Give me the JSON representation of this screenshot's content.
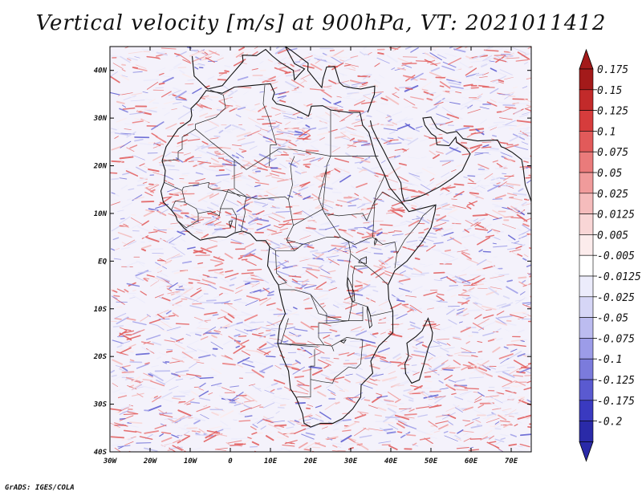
{
  "title": "Vertical velocity [m/s] at 900hPa, VT: 2021011412",
  "credit": "GrADS: IGES/COLA",
  "map": {
    "region": "Africa",
    "lon_range": [
      -30,
      75
    ],
    "lat_range": [
      -40,
      45
    ],
    "lat_ticks": [
      {
        "lat": 40,
        "label": "40N"
      },
      {
        "lat": 30,
        "label": "30N"
      },
      {
        "lat": 20,
        "label": "20N"
      },
      {
        "lat": 10,
        "label": "10N"
      },
      {
        "lat": 0,
        "label": "EQ"
      },
      {
        "lat": -10,
        "label": "10S"
      },
      {
        "lat": -20,
        "label": "20S"
      },
      {
        "lat": -30,
        "label": "30S"
      },
      {
        "lat": -40,
        "label": "40S"
      }
    ],
    "lon_ticks": [
      {
        "lon": -30,
        "label": "30W"
      },
      {
        "lon": -20,
        "label": "20W"
      },
      {
        "lon": -10,
        "label": "10W"
      },
      {
        "lon": 0,
        "label": "0"
      },
      {
        "lon": 10,
        "label": "10E"
      },
      {
        "lon": 20,
        "label": "20E"
      },
      {
        "lon": 30,
        "label": "30E"
      },
      {
        "lon": 40,
        "label": "40E"
      },
      {
        "lon": 50,
        "label": "50E"
      },
      {
        "lon": 60,
        "label": "60E"
      },
      {
        "lon": 70,
        "label": "70E"
      }
    ]
  },
  "colorbar": {
    "levels": [
      {
        "label": "0.175",
        "color": "#a31a1a"
      },
      {
        "label": "0.15",
        "color": "#c22a2a"
      },
      {
        "label": "0.125",
        "color": "#d63c3c"
      },
      {
        "label": "0.1",
        "color": "#e25a5a"
      },
      {
        "label": "0.075",
        "color": "#ea7b7b"
      },
      {
        "label": "0.05",
        "color": "#f09b9b"
      },
      {
        "label": "0.025",
        "color": "#f5bcbc"
      },
      {
        "label": "0.0125",
        "color": "#f9d6d6"
      },
      {
        "label": "0.005",
        "color": "#fcecec"
      },
      {
        "label": "-0.005",
        "color": "#ffffff"
      },
      {
        "label": "-0.0125",
        "color": "#ececfb"
      },
      {
        "label": "-0.025",
        "color": "#d6d6f6"
      },
      {
        "label": "-0.05",
        "color": "#bcbcf0"
      },
      {
        "label": "-0.075",
        "color": "#9c9ce8"
      },
      {
        "label": "-0.1",
        "color": "#7b7bdc"
      },
      {
        "label": "-0.125",
        "color": "#5a5ad0"
      },
      {
        "label": "-0.175",
        "color": "#3a3ac0"
      },
      {
        "label": "-0.2",
        "color": "#2a2aa8"
      }
    ],
    "top_arrow_color": "#a31a1a",
    "bottom_arrow_color": "#2a2aa8"
  },
  "colors": {
    "coast": "#111111",
    "border": "#222222",
    "frame": "#000000"
  }
}
